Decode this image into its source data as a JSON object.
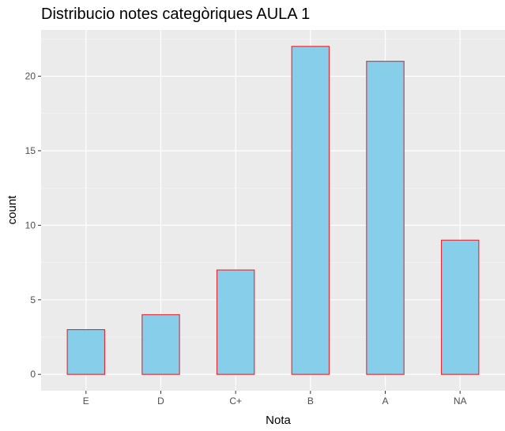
{
  "chart_data": {
    "type": "bar",
    "title": "Distribucio notes categòriques AULA 1",
    "xlabel": "Nota",
    "ylabel": "count",
    "categories": [
      "E",
      "D",
      "C+",
      "B",
      "A",
      "NA"
    ],
    "values": [
      3,
      4,
      7,
      22,
      21,
      9
    ],
    "ylim": [
      -1.1,
      23.1
    ],
    "yticks": [
      0,
      5,
      10,
      15,
      20
    ],
    "ytick_labels": [
      "0",
      "5",
      "10",
      "15",
      "20"
    ],
    "grid": true,
    "legend": "none",
    "colors": {
      "panel_background": "#ebebeb",
      "grid_major": "#ffffff",
      "bar_fill": "#87ceeb",
      "bar_outline": "#e8252c",
      "tick_label": "#4d4d4d",
      "tick_mark": "#333333"
    }
  }
}
